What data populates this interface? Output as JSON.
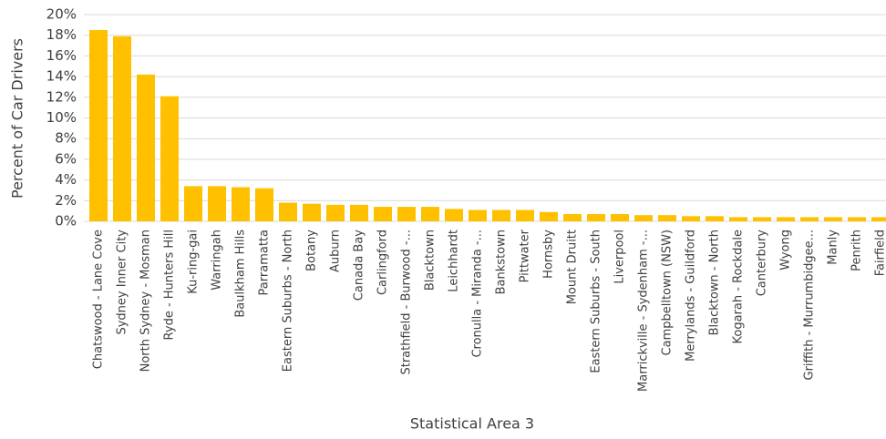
{
  "chart_data": {
    "type": "bar",
    "x_label": "Statistical Area 3",
    "y_label": "Percent of Car Drivers",
    "categories": [
      "Chatswood - Lane Cove",
      "Sydney Inner City",
      "North Sydney - Mosman",
      "Ryde - Hunters Hill",
      "Ku-ring-gai",
      "Warringah",
      "Baulkham Hills",
      "Parramatta",
      "Eastern Suburbs - North",
      "Botany",
      "Auburn",
      "Canada Bay",
      "Carlingford",
      "Strathfield - Burwood -...",
      "Blacktown",
      "Leichhardt",
      "Cronulla - Miranda -...",
      "Bankstown",
      "Pittwater",
      "Hornsby",
      "Mount Druitt",
      "Eastern Suburbs - South",
      "Liverpool",
      "Marrickville - Sydenham -...",
      "Campbelltown (NSW)",
      "Merrylands - Guildford",
      "Blacktown - North",
      "Kogarah - Rockdale",
      "Canterbury",
      "Wyong",
      "Griffith - Murrumbidgee...",
      "Manly",
      "Penrith",
      "Fairfield"
    ],
    "values": [
      18.5,
      17.9,
      14.2,
      12.1,
      3.4,
      3.4,
      3.3,
      3.2,
      1.8,
      1.7,
      1.6,
      1.6,
      1.4,
      1.4,
      1.4,
      1.2,
      1.1,
      1.1,
      1.1,
      0.9,
      0.7,
      0.7,
      0.7,
      0.6,
      0.6,
      0.5,
      0.5,
      0.4,
      0.4,
      0.4,
      0.4,
      0.4,
      0.4,
      0.4
    ],
    "color": "#ffc000",
    "ylim": [
      0,
      20
    ],
    "yticks": [
      {
        "value": 0,
        "label": "0%"
      },
      {
        "value": 2,
        "label": "2%"
      },
      {
        "value": 4,
        "label": "4%"
      },
      {
        "value": 6,
        "label": "6%"
      },
      {
        "value": 8,
        "label": "8%"
      },
      {
        "value": 10,
        "label": "10%"
      },
      {
        "value": 12,
        "label": "12%"
      },
      {
        "value": 14,
        "label": "14%"
      },
      {
        "value": 16,
        "label": "16%"
      },
      {
        "value": 18,
        "label": "18%"
      },
      {
        "value": 20,
        "label": "20%"
      }
    ],
    "grid": true
  }
}
